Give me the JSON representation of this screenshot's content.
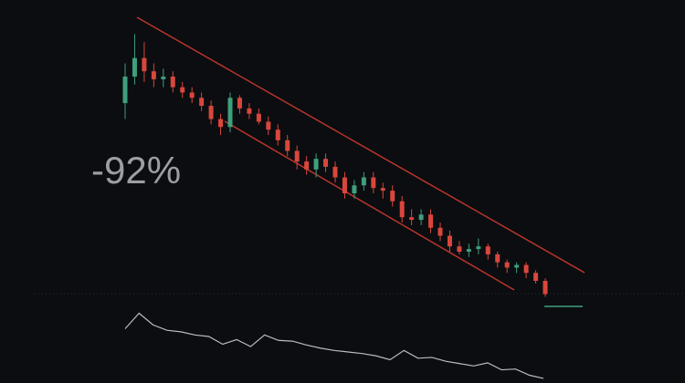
{
  "chart_data": [
    {
      "type": "candlestick",
      "annotation": "-92%",
      "up_color": "#3f9f7d",
      "down_color": "#d9473c",
      "ylim": [
        0,
        110
      ],
      "open": [
        78,
        88,
        95,
        90,
        87,
        88,
        84,
        82,
        80,
        77,
        72,
        69,
        80,
        76,
        74,
        71,
        68,
        64,
        60,
        56,
        53,
        57,
        54,
        50,
        44,
        47,
        50,
        46,
        45,
        41,
        35,
        34,
        36,
        31,
        28,
        24,
        22,
        23,
        24,
        21,
        18,
        16,
        17,
        14,
        11
      ],
      "high": [
        93,
        104,
        101,
        93,
        91,
        90,
        86,
        84,
        82,
        79,
        74,
        82,
        81,
        78,
        76,
        73,
        70,
        66,
        62,
        58,
        59,
        59,
        56,
        52,
        49,
        52,
        52,
        48,
        47,
        43,
        38,
        38,
        38,
        33,
        30,
        26,
        25,
        27,
        25,
        22,
        19,
        18,
        18,
        15,
        12
      ],
      "low": [
        72,
        85,
        86,
        84,
        84,
        82,
        80,
        78,
        75,
        70,
        66,
        67,
        74,
        72,
        70,
        66,
        62,
        58,
        53,
        51,
        50,
        52,
        48,
        42,
        42,
        45,
        44,
        42,
        39,
        33,
        32,
        32,
        29,
        26,
        22,
        21,
        20,
        21,
        19,
        16,
        14,
        14,
        12,
        10,
        5
      ],
      "close": [
        88,
        95,
        90,
        87,
        88,
        84,
        82,
        80,
        77,
        72,
        69,
        80,
        76,
        74,
        71,
        68,
        64,
        60,
        56,
        53,
        57,
        54,
        50,
        44,
        47,
        50,
        46,
        45,
        41,
        35,
        34,
        36,
        31,
        28,
        24,
        22,
        23,
        24,
        21,
        18,
        16,
        17,
        14,
        11,
        6
      ]
    },
    {
      "type": "line",
      "color": "#b9bcc2",
      "ylim": [
        0,
        100
      ],
      "values": [
        70,
        90,
        75,
        68,
        66,
        62,
        60,
        50,
        56,
        47,
        62,
        55,
        54,
        49,
        45,
        42,
        40,
        38,
        35,
        30,
        42,
        32,
        33,
        28,
        25,
        22,
        26,
        17,
        18,
        10,
        6
      ]
    }
  ]
}
